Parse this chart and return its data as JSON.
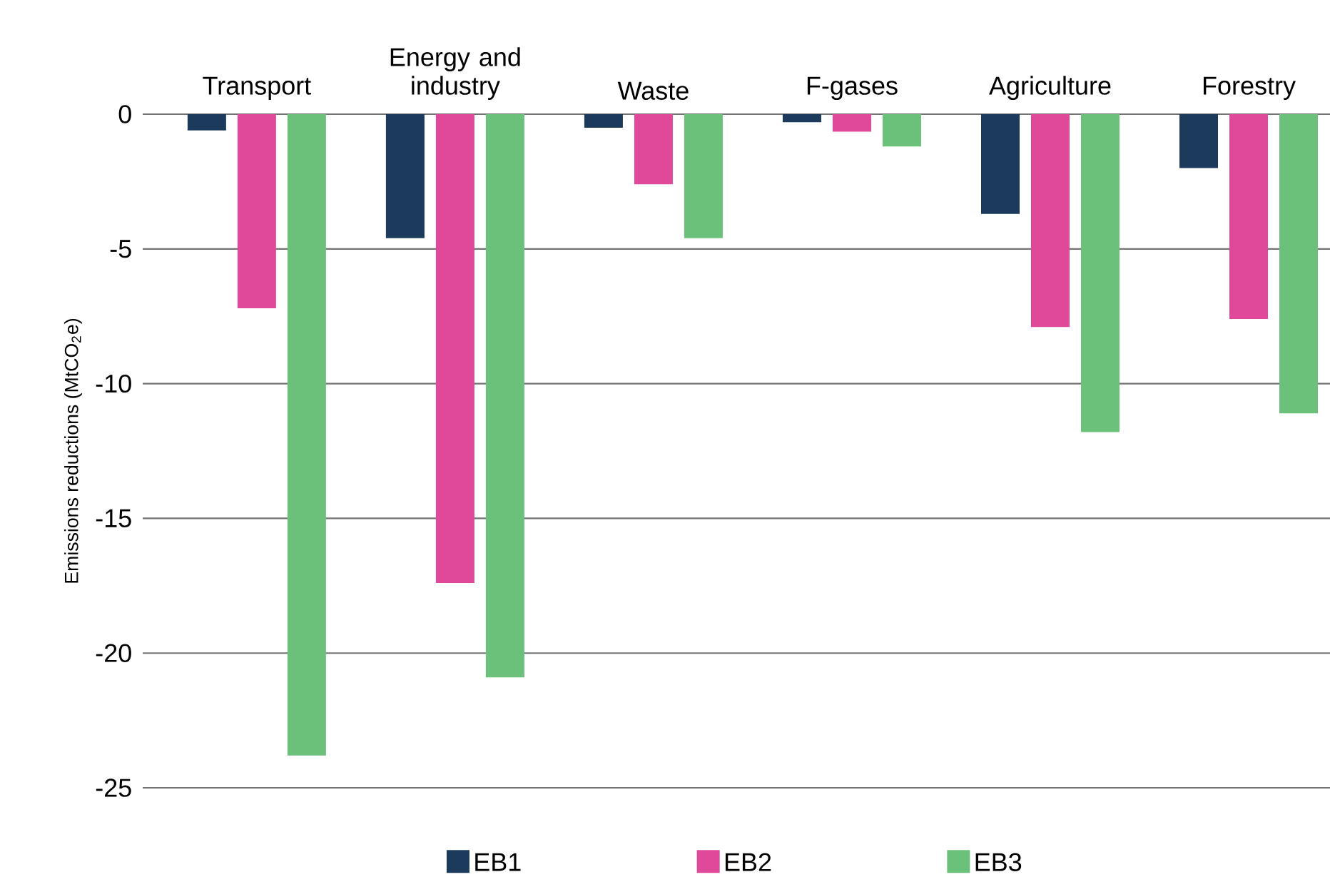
{
  "chart_data": {
    "type": "bar",
    "ylabel": "Emissions reductions (MtCO$_{2}$e)",
    "categories": [
      "Transport",
      "Energy and industry",
      "Waste",
      "F-gases",
      "Agriculture",
      "Forestry"
    ],
    "series": [
      {
        "name": "EB1",
        "color": "#1b3a5c",
        "values": [
          -0.6,
          -4.6,
          -0.5,
          -0.3,
          -3.7,
          -2.0
        ]
      },
      {
        "name": "EB2",
        "color": "#e0489a",
        "values": [
          -7.2,
          -17.4,
          -2.6,
          -0.65,
          -7.9,
          -7.6
        ]
      },
      {
        "name": "EB3",
        "color": "#6cc17a",
        "values": [
          -23.8,
          -20.9,
          -4.6,
          -1.2,
          -11.8,
          -11.1
        ]
      }
    ],
    "ylim": [
      -25,
      0
    ],
    "yticks": [
      0,
      -5,
      -10,
      -15,
      -20,
      -25
    ],
    "grid": "y",
    "legend": "bottom"
  }
}
